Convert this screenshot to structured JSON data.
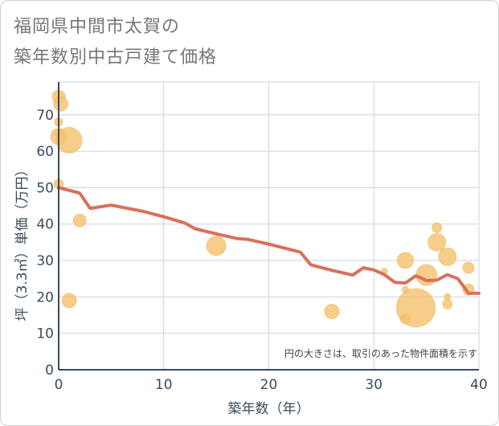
{
  "title_line1": "福岡県中間市太賀の",
  "title_line2": "築年数別中古戸建て価格",
  "chart_data": {
    "type": "scatter",
    "xlabel": "築年数（年）",
    "ylabel": "坪（3.3㎡）単価（万円）",
    "xlim": [
      0,
      40
    ],
    "ylim": [
      0,
      79
    ],
    "xticks": [
      0,
      10,
      20,
      30,
      40
    ],
    "yticks": [
      0,
      10,
      20,
      30,
      40,
      50,
      60,
      70
    ],
    "note": "円の大きさは、取引のあった物件面積を示す",
    "colors": {
      "bubble": "#f5c26b",
      "line": "#d9705a",
      "grid": "#c9d6e3"
    },
    "trend_line": {
      "x": [
        0,
        2,
        3,
        5,
        8,
        10,
        12,
        13,
        15,
        17,
        18,
        20,
        23,
        24,
        26,
        28,
        29,
        30,
        31,
        32,
        33,
        34,
        35,
        36,
        37,
        38,
        39,
        40
      ],
      "y": [
        50,
        48.5,
        44.3,
        45.2,
        43.5,
        42,
        40.3,
        38.7,
        37.3,
        36,
        35.8,
        34.5,
        32.3,
        28.8,
        27.3,
        26,
        28,
        27.4,
        26.1,
        24,
        23.8,
        25.8,
        24.5,
        24.6,
        26.1,
        25,
        21,
        21
      ]
    },
    "bubbles": [
      {
        "x": 0,
        "y": 75,
        "size": 8
      },
      {
        "x": 0.2,
        "y": 73,
        "size": 9
      },
      {
        "x": 0,
        "y": 68,
        "size": 5
      },
      {
        "x": 0,
        "y": 65,
        "size": 5
      },
      {
        "x": 0,
        "y": 64,
        "size": 10
      },
      {
        "x": 1,
        "y": 63,
        "size": 16
      },
      {
        "x": 0,
        "y": 51,
        "size": 6
      },
      {
        "x": 2,
        "y": 41,
        "size": 8
      },
      {
        "x": 1,
        "y": 19,
        "size": 9
      },
      {
        "x": 15,
        "y": 34,
        "size": 12
      },
      {
        "x": 26,
        "y": 16,
        "size": 9
      },
      {
        "x": 31,
        "y": 27,
        "size": 4
      },
      {
        "x": 33,
        "y": 30,
        "size": 10
      },
      {
        "x": 33,
        "y": 22,
        "size": 4
      },
      {
        "x": 33,
        "y": 14,
        "size": 6
      },
      {
        "x": 34,
        "y": 17,
        "size": 24
      },
      {
        "x": 35,
        "y": 26,
        "size": 13
      },
      {
        "x": 36,
        "y": 39,
        "size": 6
      },
      {
        "x": 36,
        "y": 35,
        "size": 11
      },
      {
        "x": 37,
        "y": 31,
        "size": 11
      },
      {
        "x": 37,
        "y": 20,
        "size": 4
      },
      {
        "x": 37,
        "y": 18,
        "size": 6
      },
      {
        "x": 39,
        "y": 28,
        "size": 7
      },
      {
        "x": 39,
        "y": 22,
        "size": 7
      }
    ]
  }
}
